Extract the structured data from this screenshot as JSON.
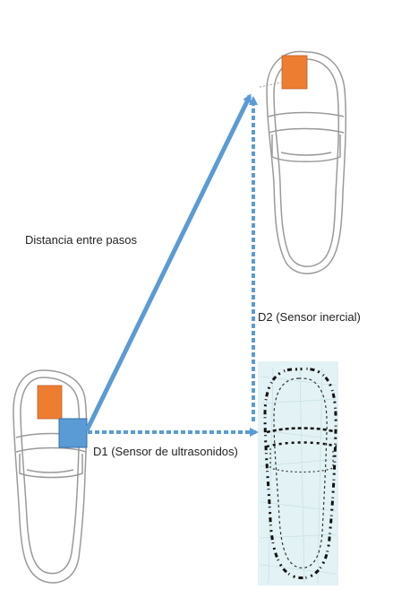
{
  "labels": {
    "step_distance": "Distancia entre pasos",
    "d2": "D2 (Sensor inercial)",
    "d1": "D1 (Sensor de ultrasonidos)"
  },
  "colors": {
    "shoe_outline": "#9a9a9a",
    "inertial_sensor": "#ed7d31",
    "ultrasonic_sensor": "#5b9bd5",
    "arrow": "#5b9bd5",
    "footprint_background": "#e3f2f4",
    "footprint_marks": "#111111"
  },
  "icons": {
    "left_shoe": "shoe-outline-icon",
    "right_shoe": "shoe-outline-icon",
    "footprint": "footprint-icon",
    "inertial_sensor": "orange-square-sensor-icon",
    "ultrasonic_sensor": "blue-square-sensor-icon"
  }
}
